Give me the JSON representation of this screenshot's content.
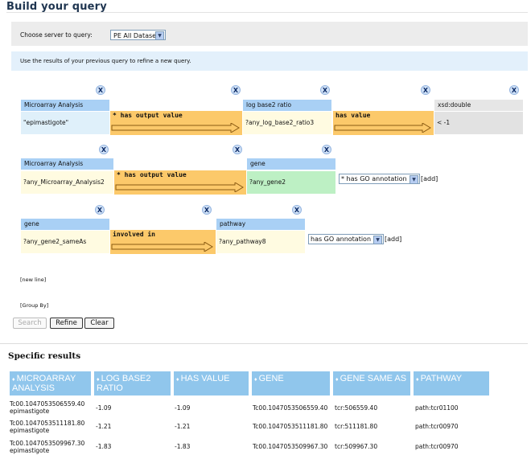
{
  "page": {
    "title": "Build your query"
  },
  "server": {
    "label": "Choose server to query:",
    "selected": "PE All Datasets"
  },
  "info": {
    "text": "Use the results of your previous query to refine a new query."
  },
  "query": {
    "remove_label": "X",
    "row1": {
      "node1": {
        "type": "Microarray Analysis",
        "value": "\"epimastigote\""
      },
      "edge1": "* has output value",
      "node2": {
        "type": "log base2 ratio",
        "value": "?any_log_base2_ratio3"
      },
      "edge2": "has value",
      "node3": {
        "type": "xsd:double",
        "value": "< -1"
      }
    },
    "row2": {
      "node1": {
        "type": "Microarray Analysis",
        "value": "?any_Microarray_Analysis2"
      },
      "edge1": "* has output value",
      "node2": {
        "type": "gene",
        "value": "?any_gene2"
      },
      "select": "* has GO annotation",
      "add": "[add]"
    },
    "row3": {
      "node1": {
        "type": "gene",
        "value": "?any_gene2_sameAs"
      },
      "edge1": "involved in",
      "node2": {
        "type": "pathway",
        "value": "?any_pathway8"
      },
      "select": "has GO annotation",
      "add": "[add]"
    },
    "new_line": "[new line]",
    "group_by": "[Group By]"
  },
  "buttons": {
    "search": "Search",
    "refine": "Refine",
    "clear": "Clear"
  },
  "results": {
    "title": "Specific results",
    "headers": [
      "MICROARRAY ANALYSIS",
      "LOG BASE2 RATIO",
      "HAS VALUE",
      "GENE",
      "GENE SAME AS",
      "PATHWAY"
    ],
    "rows": [
      [
        "Tc00.1047053506559.40 epimastigote",
        "-1.09",
        "-1.09",
        "Tc00.1047053506559.40",
        "tcr:506559.40",
        "path:tcr01100"
      ],
      [
        "Tc00.1047053511181.80 epimastigote",
        "-1.21",
        "-1.21",
        "Tc00.1047053511181.80",
        "tcr:511181.80",
        "path:tcr00970"
      ],
      [
        "Tc00.1047053509967.30 epimastigote",
        "-1.83",
        "-1.83",
        "Tc00.1047053509967.30",
        "tcr:509967.30",
        "path:tcr00970"
      ]
    ]
  }
}
